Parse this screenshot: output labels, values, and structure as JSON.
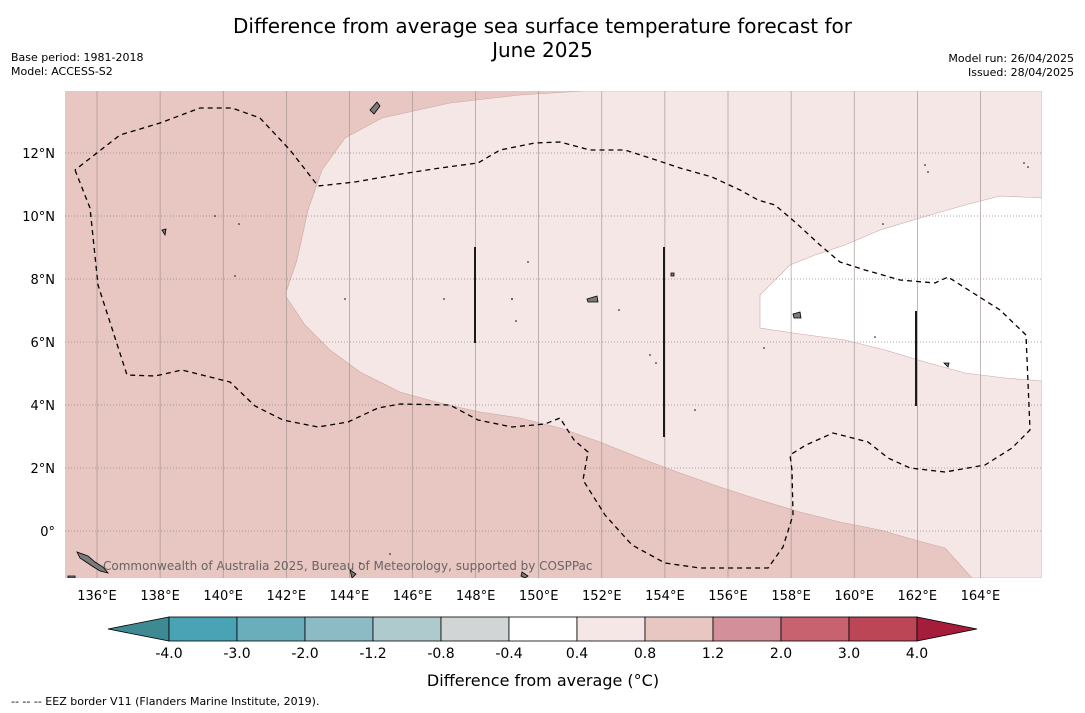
{
  "title_line1": "Difference from average sea surface temperature forecast for",
  "title_line2": "June 2025",
  "base_period": "Base period: 1981-2018",
  "model": "Model: ACCESS-S2",
  "model_run": "Model run: 26/04/2025",
  "issued": "Issued: 28/04/2025",
  "copyright": "Commonwealth of Australia 2025, Bureau of Meteorology, supported by COSPPac",
  "lon_labels": [
    "136°E",
    "138°E",
    "140°E",
    "142°E",
    "144°E",
    "146°E",
    "148°E",
    "150°E",
    "152°E",
    "154°E",
    "156°E",
    "158°E",
    "160°E",
    "162°E",
    "164°E"
  ],
  "lat_labels": [
    "12°N",
    "10°N",
    "8°N",
    "6°N",
    "4°N",
    "2°N",
    "0°"
  ],
  "colorbar": {
    "title": "Difference from average (°C)",
    "ticks": [
      "-4.0",
      "-3.0",
      "-2.0",
      "-1.2",
      "-0.8",
      "-0.4",
      "0.4",
      "0.8",
      "1.2",
      "2.0",
      "3.0",
      "4.0"
    ],
    "colors": [
      "#4aa3b4",
      "#6aaebc",
      "#8cbac5",
      "#aecacd",
      "#d1d5d6",
      "#ffffff",
      "#f5e7e5",
      "#e8c6c1",
      "#d4909a",
      "#c8626f",
      "#bc4656"
    ],
    "low_extend_color": "#3d8a93",
    "high_extend_color": "#a51d3b"
  },
  "footer": "--  --  -- EEZ border V11 (Flanders Marine Institute, 2019)."
}
